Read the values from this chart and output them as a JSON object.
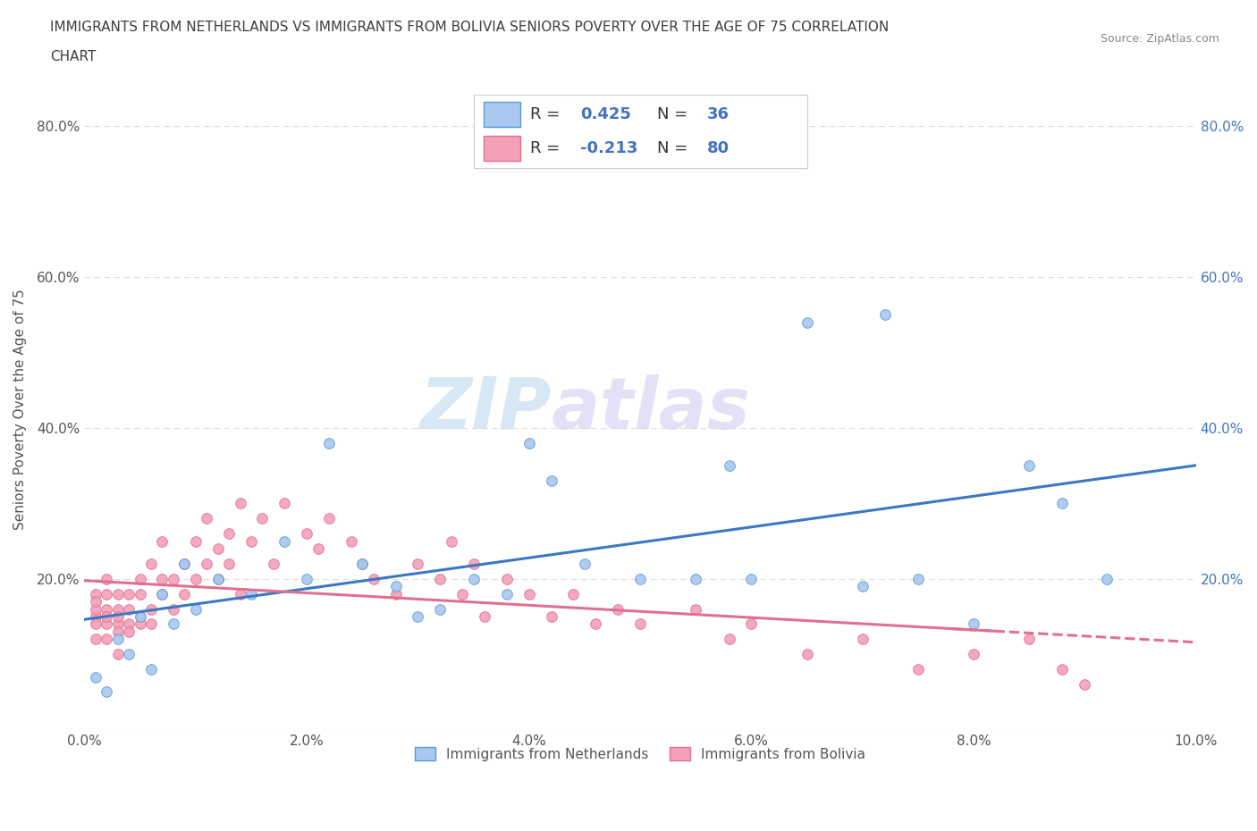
{
  "title_line1": "IMMIGRANTS FROM NETHERLANDS VS IMMIGRANTS FROM BOLIVIA SENIORS POVERTY OVER THE AGE OF 75 CORRELATION",
  "title_line2": "CHART",
  "source": "Source: ZipAtlas.com",
  "ylabel": "Seniors Poverty Over the Age of 75",
  "xlim": [
    0.0,
    0.1
  ],
  "ylim": [
    0.0,
    0.85
  ],
  "xticks": [
    0.0,
    0.02,
    0.04,
    0.06,
    0.08,
    0.1
  ],
  "xtick_labels": [
    "0.0%",
    "2.0%",
    "4.0%",
    "6.0%",
    "8.0%",
    "10.0%"
  ],
  "yticks": [
    0.0,
    0.2,
    0.4,
    0.6,
    0.8
  ],
  "ytick_labels": [
    "",
    "20.0%",
    "40.0%",
    "60.0%",
    "80.0%"
  ],
  "netherlands_color": "#a8c8f0",
  "netherlands_edge_color": "#5b9bd5",
  "netherlands_line_color": "#3b78c3",
  "bolivia_color": "#f4a0b8",
  "bolivia_edge_color": "#e07090",
  "bolivia_line_color": "#e07090",
  "R_netherlands": 0.425,
  "N_netherlands": 36,
  "R_bolivia": -0.213,
  "N_bolivia": 80,
  "netherlands_x": [
    0.001,
    0.002,
    0.003,
    0.004,
    0.005,
    0.006,
    0.007,
    0.008,
    0.009,
    0.01,
    0.012,
    0.015,
    0.018,
    0.02,
    0.022,
    0.025,
    0.028,
    0.03,
    0.032,
    0.035,
    0.038,
    0.04,
    0.042,
    0.045,
    0.05,
    0.055,
    0.058,
    0.06,
    0.065,
    0.07,
    0.072,
    0.075,
    0.08,
    0.085,
    0.088,
    0.092
  ],
  "netherlands_y": [
    0.07,
    0.05,
    0.12,
    0.1,
    0.15,
    0.08,
    0.18,
    0.14,
    0.22,
    0.16,
    0.2,
    0.18,
    0.25,
    0.2,
    0.38,
    0.22,
    0.19,
    0.15,
    0.16,
    0.2,
    0.18,
    0.38,
    0.33,
    0.22,
    0.2,
    0.2,
    0.35,
    0.2,
    0.54,
    0.19,
    0.55,
    0.2,
    0.14,
    0.35,
    0.3,
    0.2
  ],
  "bolivia_x": [
    0.001,
    0.001,
    0.001,
    0.001,
    0.001,
    0.001,
    0.002,
    0.002,
    0.002,
    0.002,
    0.002,
    0.002,
    0.003,
    0.003,
    0.003,
    0.003,
    0.003,
    0.003,
    0.004,
    0.004,
    0.004,
    0.004,
    0.005,
    0.005,
    0.005,
    0.005,
    0.006,
    0.006,
    0.006,
    0.007,
    0.007,
    0.007,
    0.008,
    0.008,
    0.009,
    0.009,
    0.01,
    0.01,
    0.011,
    0.011,
    0.012,
    0.012,
    0.013,
    0.013,
    0.014,
    0.014,
    0.015,
    0.016,
    0.017,
    0.018,
    0.02,
    0.021,
    0.022,
    0.024,
    0.025,
    0.026,
    0.028,
    0.03,
    0.032,
    0.033,
    0.034,
    0.035,
    0.036,
    0.038,
    0.04,
    0.042,
    0.044,
    0.046,
    0.048,
    0.05,
    0.055,
    0.058,
    0.06,
    0.065,
    0.07,
    0.075,
    0.08,
    0.085,
    0.088,
    0.09
  ],
  "bolivia_y": [
    0.15,
    0.16,
    0.14,
    0.18,
    0.12,
    0.17,
    0.14,
    0.16,
    0.18,
    0.15,
    0.2,
    0.12,
    0.14,
    0.13,
    0.16,
    0.1,
    0.18,
    0.15,
    0.16,
    0.14,
    0.18,
    0.13,
    0.2,
    0.15,
    0.18,
    0.14,
    0.22,
    0.16,
    0.14,
    0.2,
    0.18,
    0.25,
    0.16,
    0.2,
    0.18,
    0.22,
    0.25,
    0.2,
    0.28,
    0.22,
    0.24,
    0.2,
    0.26,
    0.22,
    0.3,
    0.18,
    0.25,
    0.28,
    0.22,
    0.3,
    0.26,
    0.24,
    0.28,
    0.25,
    0.22,
    0.2,
    0.18,
    0.22,
    0.2,
    0.25,
    0.18,
    0.22,
    0.15,
    0.2,
    0.18,
    0.15,
    0.18,
    0.14,
    0.16,
    0.14,
    0.16,
    0.12,
    0.14,
    0.1,
    0.12,
    0.08,
    0.1,
    0.12,
    0.08,
    0.06
  ],
  "background_color": "#ffffff",
  "grid_color": "#dddddd",
  "watermark_zip": "ZIP",
  "watermark_atlas": "atlas",
  "legend_color": "#4472c4",
  "title_color": "#3f3f3f",
  "axis_label_color": "#555555",
  "right_tick_color": "#4472c4"
}
